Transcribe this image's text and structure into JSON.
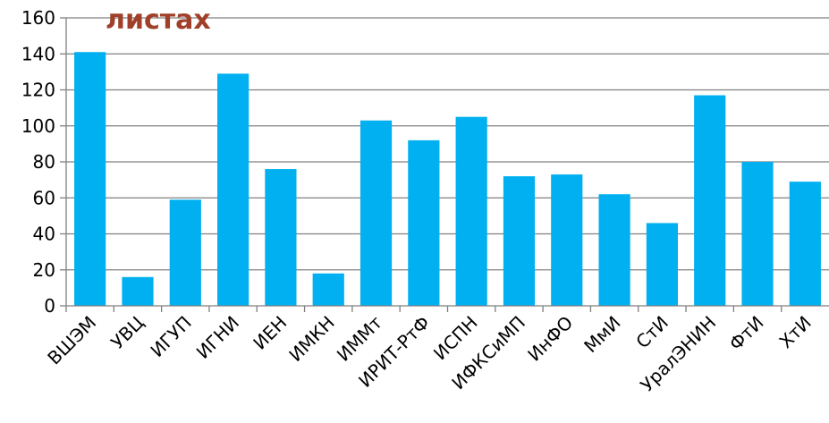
{
  "chart_data": {
    "type": "bar",
    "title": "листах",
    "xlabel": "",
    "ylabel": "",
    "ylim": [
      0,
      160
    ],
    "yticks": [
      "0",
      "20",
      "40",
      "60",
      "80",
      "100",
      "120",
      "140",
      "160"
    ],
    "grid": true,
    "categories": [
      "ВШЭМ",
      "УВЦ",
      "ИГУП",
      "ИГНИ",
      "ИЕН",
      "ИМКН",
      "ИММт",
      "ИРИТ-РтФ",
      "ИСПН",
      "ИФКСиМП",
      "ИнФО",
      "МмИ",
      "СтИ",
      "УралЭНИН",
      "ФтИ",
      "ХтИ"
    ],
    "values": [
      141,
      16,
      59,
      129,
      76,
      18,
      103,
      92,
      105,
      72,
      73,
      62,
      46,
      117,
      80,
      69
    ]
  },
  "colors": {
    "bar": "#00b0f0",
    "title": "#a0402a",
    "grid": "#808080",
    "axis": "#808080"
  }
}
